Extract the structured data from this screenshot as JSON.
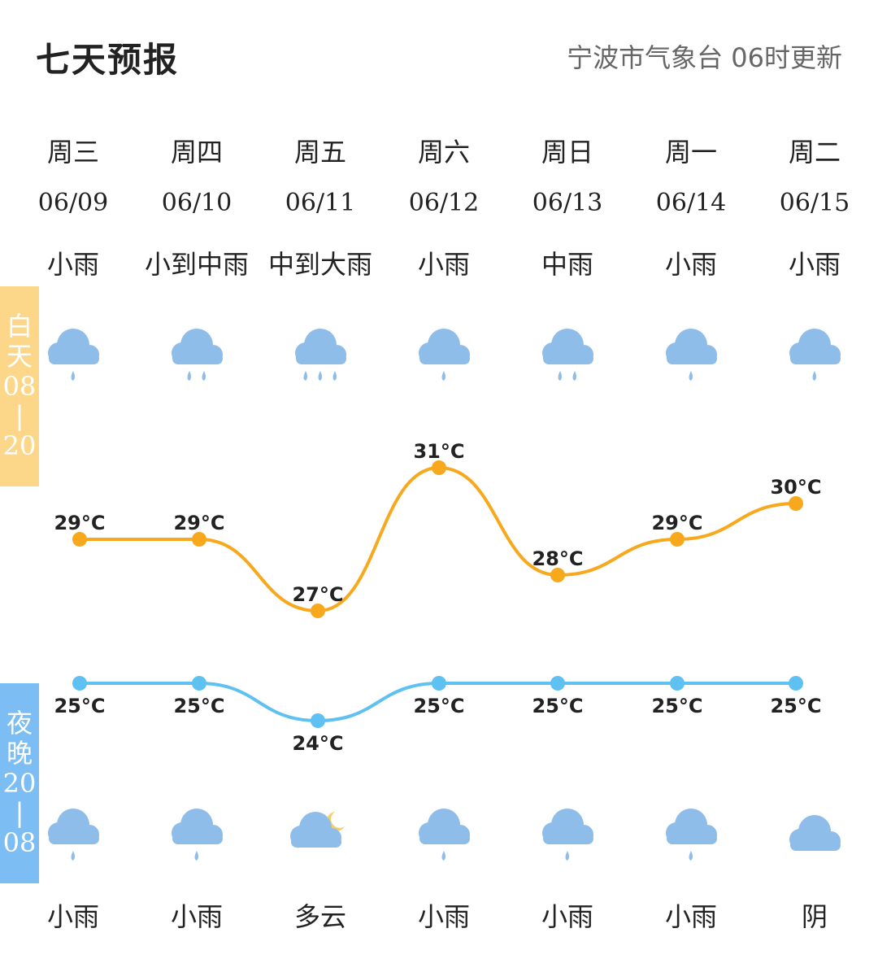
{
  "header": {
    "title": "七天预报",
    "source": "宁波市气象台 06时更新"
  },
  "badges": {
    "day": [
      "白",
      "天",
      "08",
      "|",
      "20"
    ],
    "night": [
      "夜",
      "晚",
      "20",
      "|",
      "08"
    ]
  },
  "days": [
    {
      "weekday": "周三",
      "date": "06/09",
      "day_weather": "小雨",
      "day_icon": "light-rain-icon",
      "night_weather": "小雨",
      "night_icon": "light-rain-icon"
    },
    {
      "weekday": "周四",
      "date": "06/10",
      "day_weather": "小到中雨",
      "day_icon": "light-moderate-rain-icon",
      "night_weather": "小雨",
      "night_icon": "light-rain-icon"
    },
    {
      "weekday": "周五",
      "date": "06/11",
      "day_weather": "中到大雨",
      "day_icon": "moderate-heavy-rain-icon",
      "night_weather": "多云",
      "night_icon": "cloudy-night-moon-icon"
    },
    {
      "weekday": "周六",
      "date": "06/12",
      "day_weather": "小雨",
      "day_icon": "light-rain-icon",
      "night_weather": "小雨",
      "night_icon": "light-rain-icon"
    },
    {
      "weekday": "周日",
      "date": "06/13",
      "day_weather": "中雨",
      "day_icon": "moderate-rain-icon",
      "night_weather": "小雨",
      "night_icon": "light-rain-icon"
    },
    {
      "weekday": "周一",
      "date": "06/14",
      "day_weather": "小雨",
      "day_icon": "light-rain-icon",
      "night_weather": "小雨",
      "night_icon": "light-rain-icon"
    },
    {
      "weekday": "周二",
      "date": "06/15",
      "day_weather": "小雨",
      "day_icon": "light-rain-icon",
      "night_weather": "阴",
      "night_icon": "overcast-icon"
    }
  ],
  "colors": {
    "high_line": "#f7a81c",
    "low_line": "#5ec1f2",
    "cloud": "#8ebde9",
    "day_badge": "#fcd78a",
    "night_badge": "#7cbef3",
    "moon": "#f5cf66"
  },
  "chart_data": {
    "type": "line",
    "categories": [
      "06/09",
      "06/10",
      "06/11",
      "06/12",
      "06/13",
      "06/14",
      "06/15"
    ],
    "unit": "°C",
    "series": [
      {
        "values": [
          29,
          29,
          27,
          31,
          28,
          29,
          30
        ],
        "labels": [
          "29°C",
          "29°C",
          "27°C",
          "31°C",
          "28°C",
          "29°C",
          "30°C"
        ]
      },
      {
        "values": [
          25,
          25,
          24,
          25,
          25,
          25,
          25
        ],
        "labels": [
          "25°C",
          "25°C",
          "24°C",
          "25°C",
          "25°C",
          "25°C",
          "25°C"
        ]
      }
    ],
    "legend": "none",
    "grid": false
  }
}
